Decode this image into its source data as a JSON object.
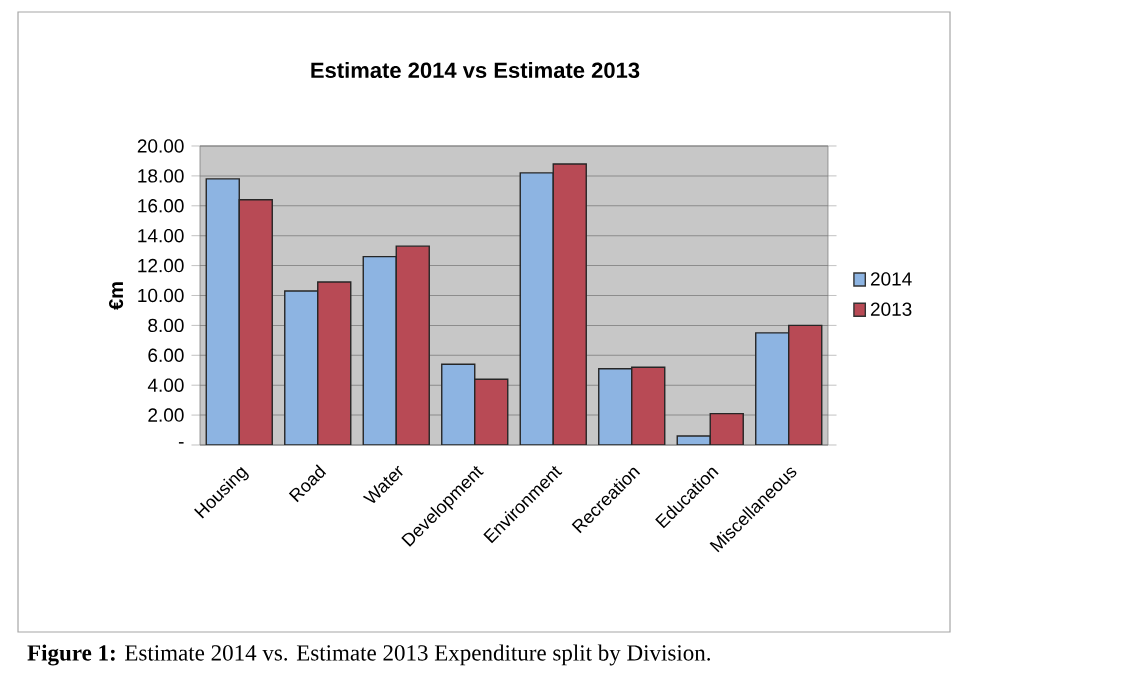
{
  "chart_data": {
    "type": "bar",
    "title": "Estimate 2014 vs  Estimate 2013",
    "ylabel": "€m",
    "categories": [
      "Housing",
      "Road",
      "Water",
      "Development",
      "Environment",
      "Recreation",
      "Education",
      "Miscellaneous"
    ],
    "series": [
      {
        "name": "2014",
        "color": "#8db4e2",
        "values": [
          17.8,
          10.3,
          12.6,
          5.4,
          18.2,
          5.1,
          0.6,
          7.5
        ]
      },
      {
        "name": "2013",
        "color": "#b84a55",
        "values": [
          16.4,
          10.9,
          13.3,
          4.4,
          18.8,
          5.2,
          2.1,
          8.0
        ]
      }
    ],
    "ylim": [
      0,
      20
    ],
    "yticks": [
      {
        "value": 0,
        "label": "-"
      },
      {
        "value": 2,
        "label": "2.00"
      },
      {
        "value": 4,
        "label": "4.00"
      },
      {
        "value": 6,
        "label": "6.00"
      },
      {
        "value": 8,
        "label": "8.00"
      },
      {
        "value": 10,
        "label": "10.00"
      },
      {
        "value": 12,
        "label": "12.00"
      },
      {
        "value": 14,
        "label": "14.00"
      },
      {
        "value": 16,
        "label": "16.00"
      },
      {
        "value": 18,
        "label": "18.00"
      },
      {
        "value": 20,
        "label": "20.00"
      }
    ],
    "grid": "y",
    "legend": "right",
    "annotations": [
      "**Figure 1:** Estimate 2014 vs. Estimate 2013 Expenditure split by Division."
    ]
  }
}
